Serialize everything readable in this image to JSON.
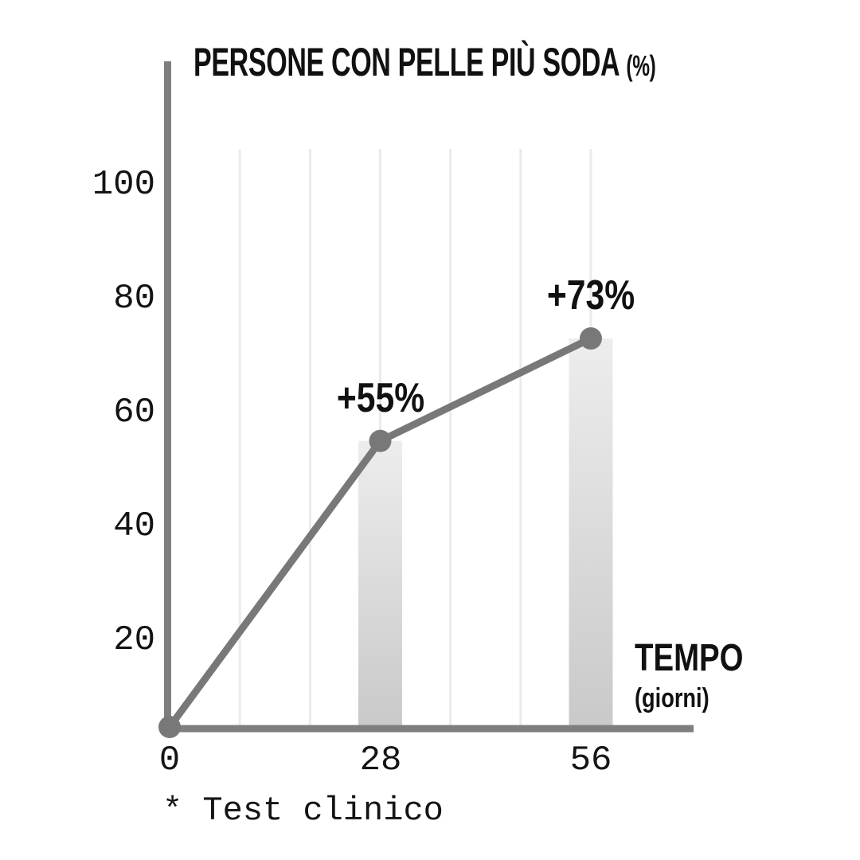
{
  "chart_data": {
    "type": "line",
    "title": "PERSONE CON PELLE PIÙ SODA",
    "title_unit": "(%)",
    "xlabel": "TEMPO",
    "xlabel_unit": "(giorni)",
    "footnote": "* Test clinico",
    "x": [
      0,
      28,
      56
    ],
    "values": [
      0,
      55,
      73
    ],
    "point_labels": [
      "",
      "+55%",
      "+73%"
    ],
    "x_ticks": [
      "0",
      "28",
      "56"
    ],
    "y_ticks": [
      "100",
      "80",
      "60",
      "40",
      "20"
    ],
    "ylim": [
      0,
      100
    ],
    "xlim": [
      0,
      56
    ],
    "grid": "vertical-only",
    "legend": "none",
    "colors": {
      "line": "#787878",
      "axis": "#7e7e7e",
      "gridline": "#ebebeb",
      "bar_top": "#ededed",
      "bar_bottom": "#c9c9c9",
      "text": "#111111",
      "background": "#ffffff"
    }
  }
}
